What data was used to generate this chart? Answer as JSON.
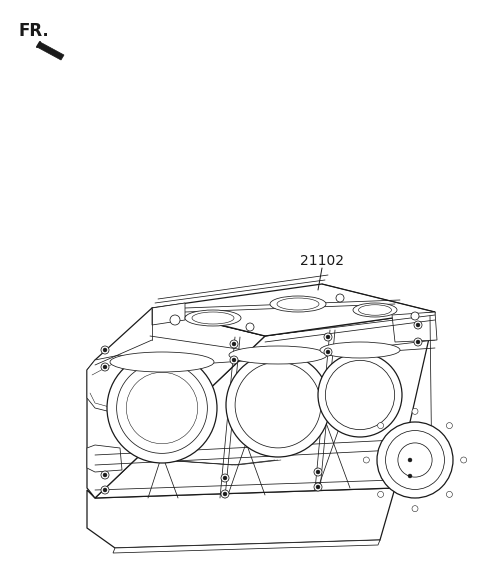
{
  "bg_color": "#ffffff",
  "line_color": "#1a1a1a",
  "part_label": "21102",
  "fr_label": "FR.",
  "figsize": [
    4.8,
    5.76
  ],
  "dpi": 100,
  "lw_main": 0.9,
  "lw_thin": 0.55,
  "lw_med": 0.7,
  "engine_color": "#ffffff",
  "engine_edge": "#1a1a1a"
}
